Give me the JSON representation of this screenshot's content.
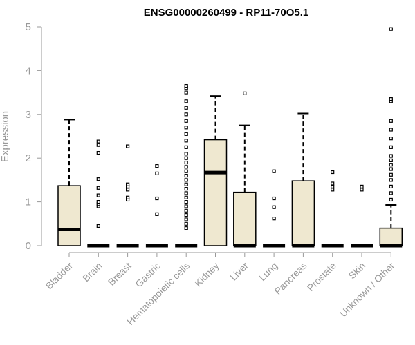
{
  "chart_data": {
    "type": "boxplot",
    "title": "ENSG00000260499 - RP11-70O5.1",
    "xlabel": "",
    "ylabel": "Expression",
    "ylim": [
      0,
      5
    ],
    "yticks": [
      0,
      1,
      2,
      3,
      4,
      5
    ],
    "grid": false,
    "legend": "none",
    "colors": {
      "box_fill": "#efe8d0",
      "stroke": "#000000",
      "axis": "#999999"
    },
    "categories": [
      "Bladder",
      "Brain",
      "Breast",
      "Gastric",
      "Hematopoietic cells",
      "Kidney",
      "Liver",
      "Lung",
      "Pancreas",
      "Prostate",
      "Skin",
      "Unknown / Other"
    ],
    "boxes": [
      {
        "category": "Bladder",
        "q1": 0,
        "median": 0.37,
        "q3": 1.37,
        "whisker_low": 0,
        "whisker_high": 2.88,
        "outliers": []
      },
      {
        "category": "Brain",
        "q1": 0,
        "median": 0,
        "q3": 0,
        "whisker_low": 0,
        "whisker_high": 0,
        "outliers": [
          0.45,
          0.9,
          0.95,
          1.0,
          1.15,
          1.32,
          1.52,
          2.12,
          2.3,
          2.38
        ]
      },
      {
        "category": "Breast",
        "q1": 0,
        "median": 0,
        "q3": 0,
        "whisker_low": 0,
        "whisker_high": 0,
        "outliers": [
          1.05,
          1.1,
          1.28,
          1.35,
          1.4,
          2.27
        ]
      },
      {
        "category": "Gastric",
        "q1": 0,
        "median": 0,
        "q3": 0,
        "whisker_low": 0,
        "whisker_high": 0,
        "outliers": [
          0.72,
          1.08,
          1.65,
          1.82
        ]
      },
      {
        "category": "Hematopoietic cells",
        "q1": 0,
        "median": 0,
        "q3": 0,
        "whisker_low": 0,
        "whisker_high": 0,
        "outliers": [
          0.4,
          0.5,
          0.6,
          0.7,
          0.8,
          0.9,
          1.0,
          1.1,
          1.2,
          1.3,
          1.4,
          1.5,
          1.6,
          1.7,
          1.8,
          1.9,
          2.0,
          2.1,
          2.25,
          2.4,
          2.55,
          2.7,
          2.85,
          3.0,
          3.15,
          3.3,
          3.5,
          3.6,
          3.65
        ]
      },
      {
        "category": "Kidney",
        "q1": 0,
        "median": 1.67,
        "q3": 2.42,
        "whisker_low": 0,
        "whisker_high": 3.42,
        "outliers": []
      },
      {
        "category": "Liver",
        "q1": 0,
        "median": 0,
        "q3": 1.22,
        "whisker_low": 0,
        "whisker_high": 2.75,
        "outliers": [
          3.48
        ]
      },
      {
        "category": "Lung",
        "q1": 0,
        "median": 0,
        "q3": 0,
        "whisker_low": 0,
        "whisker_high": 0,
        "outliers": [
          0.62,
          0.88,
          1.08,
          1.7
        ]
      },
      {
        "category": "Pancreas",
        "q1": 0,
        "median": 0,
        "q3": 1.48,
        "whisker_low": 0,
        "whisker_high": 3.02,
        "outliers": []
      },
      {
        "category": "Prostate",
        "q1": 0,
        "median": 0,
        "q3": 0,
        "whisker_low": 0,
        "whisker_high": 0,
        "outliers": [
          1.28,
          1.35,
          1.42,
          1.68
        ]
      },
      {
        "category": "Skin",
        "q1": 0,
        "median": 0,
        "q3": 0,
        "whisker_low": 0,
        "whisker_high": 0,
        "outliers": [
          1.28,
          1.35
        ]
      },
      {
        "category": "Unknown / Other",
        "q1": 0,
        "median": 0,
        "q3": 0.4,
        "whisker_low": 0,
        "whisker_high": 0.93,
        "outliers": [
          1.05,
          1.2,
          1.35,
          1.5,
          1.62,
          1.75,
          1.85,
          1.95,
          2.05,
          2.25,
          2.45,
          2.65,
          2.85,
          3.3,
          3.35,
          4.95
        ]
      }
    ]
  }
}
